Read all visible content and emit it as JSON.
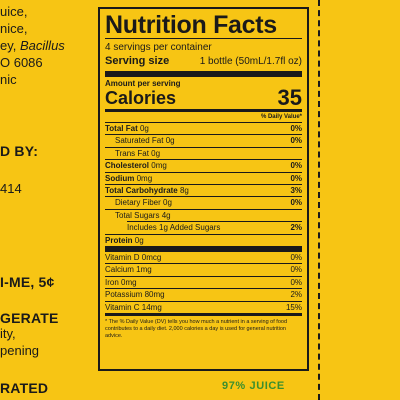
{
  "left_text": [
    {
      "text": "uice,"
    },
    {
      "text": "nice,"
    },
    {
      "text": "ey, ",
      "italic": "Bacillus"
    },
    {
      "text": "O 6086"
    },
    {
      "text": "nic"
    },
    {
      "text": "D BY:"
    },
    {
      "text": "414"
    },
    {
      "text": "I-ME, 5¢"
    },
    {
      "text": "GERATE"
    },
    {
      "text": "ity,"
    },
    {
      "text": "pening"
    },
    {
      "text": "RATED"
    }
  ],
  "label": {
    "title": "Nutrition Facts",
    "servings": "4 servings per container",
    "serving_size_label": "Serving size",
    "serving_size_value": "1 bottle (50mL/1.7fl oz)",
    "amount_per_serving": "Amount per serving",
    "calories_label": "Calories",
    "calories_value": "35",
    "dv_header": "% Daily Value*",
    "total_fat": {
      "name": "Total Fat",
      "amount": "0g",
      "pct": "0%"
    },
    "saturated_fat": {
      "name": "Saturated Fat",
      "amount": "0g",
      "pct": "0%"
    },
    "trans_fat": {
      "name": "Trans Fat",
      "amount": "0g"
    },
    "cholesterol": {
      "name": "Cholesterol",
      "amount": "0mg",
      "pct": "0%"
    },
    "sodium": {
      "name": "Sodium",
      "amount": "0mg",
      "pct": "0%"
    },
    "total_carb": {
      "name": "Total Carbohydrate",
      "amount": "8g",
      "pct": "3%"
    },
    "dietary_fiber": {
      "name": "Dietary Fiber",
      "amount": "0g",
      "pct": "0%"
    },
    "total_sugars": {
      "name": "Total Sugars",
      "amount": "4g"
    },
    "added_sugars": {
      "text": "Includes 1g Added Sugars",
      "pct": "2%"
    },
    "protein": {
      "name": "Protein",
      "amount": "0g"
    },
    "vitamins": [
      {
        "name": "Vitamin D 0mcg",
        "pct": "0%"
      },
      {
        "name": "Calcium 1mg",
        "pct": "0%"
      },
      {
        "name": "Iron 0mg",
        "pct": "0%"
      },
      {
        "name": "Potassium 80mg",
        "pct": "2%"
      },
      {
        "name": "Vitamin C 14mg",
        "pct": "15%"
      }
    ],
    "footnote": "* The % Daily Value (DV) tells you how much a nutrient in a serving of food contributes to a daily diet. 2,000 calories a day is used for general nutrition advice."
  },
  "juice_percent": "97% JUICE",
  "colors": {
    "background": "#f7c514",
    "juice_text": "#3b8f2e",
    "ink": "#1a1a1a"
  }
}
